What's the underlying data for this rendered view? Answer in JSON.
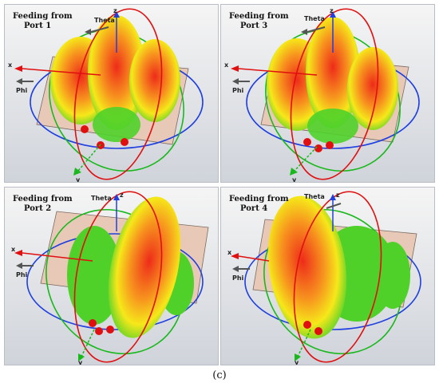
{
  "panels": [
    {
      "line1": "Feeding from",
      "line2": "Port 1"
    },
    {
      "line1": "Feeding from",
      "line2": "Port 3"
    },
    {
      "line1": "Feeding from",
      "line2": "Port 2"
    },
    {
      "line1": "Feeding from",
      "line2": "Port 4"
    }
  ],
  "axis_labels": {
    "theta": "Theta",
    "phi": "Phi",
    "x": "x",
    "y": "y",
    "z": "z"
  },
  "caption": "(c)",
  "colors": {
    "panel_bg_top": "#f4f4f4",
    "panel_bg_bottom": "#cfd3da",
    "ground_plane": "#e8c9b8",
    "lobe_red": "#ee2b1a",
    "lobe_orange": "#f7931e",
    "lobe_yellow": "#f6e81a",
    "lobe_green": "#4fd12a",
    "ring_red": "#e01010",
    "ring_blue": "#1f3fe0",
    "ring_green": "#19b81c"
  }
}
